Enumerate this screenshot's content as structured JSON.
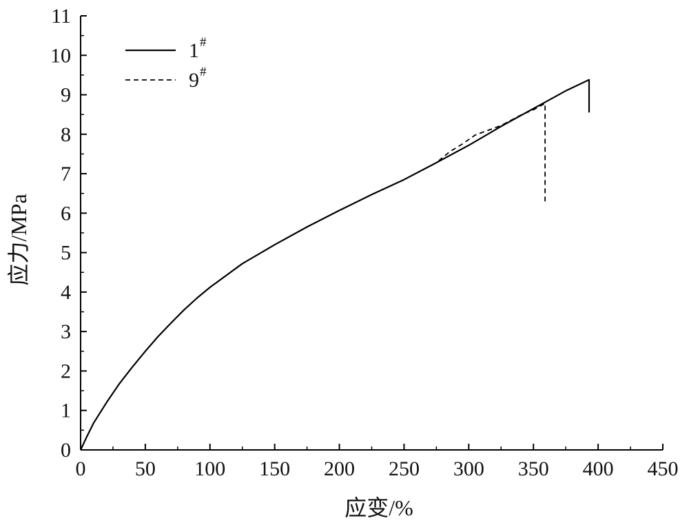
{
  "chart_data": {
    "type": "line",
    "title": "",
    "xlabel": "应变/%",
    "ylabel": "应力/MPa",
    "xlim": [
      0,
      450
    ],
    "ylim": [
      0,
      11
    ],
    "xticks": [
      0,
      50,
      100,
      150,
      200,
      250,
      300,
      350,
      400,
      450
    ],
    "yticks": [
      0,
      1,
      2,
      3,
      4,
      5,
      6,
      7,
      8,
      9,
      10,
      11
    ],
    "grid": false,
    "legend_position": "top-left",
    "series": [
      {
        "name": "1",
        "name_superscript": "#",
        "style": "solid",
        "color": "#000000",
        "points": [
          [
            0,
            0
          ],
          [
            5,
            0.35
          ],
          [
            10,
            0.68
          ],
          [
            20,
            1.2
          ],
          [
            30,
            1.68
          ],
          [
            40,
            2.1
          ],
          [
            50,
            2.5
          ],
          [
            60,
            2.88
          ],
          [
            70,
            3.22
          ],
          [
            80,
            3.55
          ],
          [
            90,
            3.85
          ],
          [
            100,
            4.12
          ],
          [
            125,
            4.72
          ],
          [
            150,
            5.2
          ],
          [
            175,
            5.65
          ],
          [
            200,
            6.07
          ],
          [
            225,
            6.47
          ],
          [
            250,
            6.85
          ],
          [
            275,
            7.28
          ],
          [
            300,
            7.72
          ],
          [
            325,
            8.2
          ],
          [
            350,
            8.65
          ],
          [
            360,
            8.83
          ],
          [
            375,
            9.1
          ],
          [
            393,
            9.38
          ],
          [
            393,
            8.55
          ]
        ]
      },
      {
        "name": "9",
        "name_superscript": "#",
        "style": "dashed",
        "color": "#000000",
        "points": [
          [
            0,
            0
          ],
          [
            5,
            0.35
          ],
          [
            10,
            0.68
          ],
          [
            20,
            1.2
          ],
          [
            30,
            1.68
          ],
          [
            40,
            2.1
          ],
          [
            50,
            2.5
          ],
          [
            60,
            2.88
          ],
          [
            70,
            3.22
          ],
          [
            80,
            3.55
          ],
          [
            90,
            3.85
          ],
          [
            100,
            4.12
          ],
          [
            125,
            4.72
          ],
          [
            150,
            5.2
          ],
          [
            175,
            5.65
          ],
          [
            200,
            6.07
          ],
          [
            225,
            6.47
          ],
          [
            250,
            6.85
          ],
          [
            275,
            7.28
          ],
          [
            285,
            7.55
          ],
          [
            295,
            7.75
          ],
          [
            305,
            7.98
          ],
          [
            325,
            8.22
          ],
          [
            340,
            8.48
          ],
          [
            350,
            8.62
          ],
          [
            359,
            8.78
          ],
          [
            359,
            6.3
          ]
        ]
      }
    ]
  }
}
